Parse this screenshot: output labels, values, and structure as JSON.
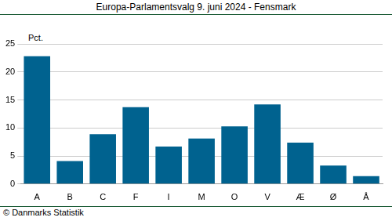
{
  "chart_data": {
    "type": "bar",
    "title": "Europa-Parlamentsvalg 9. juni 2024 - Fensmark",
    "y_label": "Pct.",
    "source": "© Danmarks Statistik",
    "categories": [
      "A",
      "B",
      "C",
      "F",
      "I",
      "M",
      "O",
      "V",
      "Æ",
      "Ø",
      "Å"
    ],
    "values": [
      22.8,
      4.1,
      8.9,
      13.7,
      6.7,
      8.1,
      10.3,
      14.2,
      7.4,
      3.3,
      1.4
    ],
    "color": "#00628f",
    "ylim": [
      0,
      25
    ],
    "yticks": [
      0,
      5,
      10,
      15,
      20,
      25
    ],
    "grid": true
  }
}
